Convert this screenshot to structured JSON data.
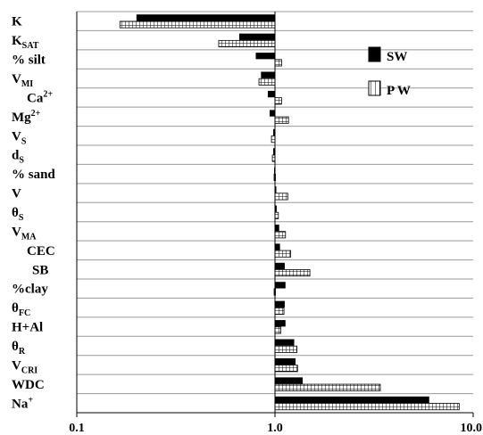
{
  "chart_data": {
    "type": "bar",
    "orientation": "horizontal",
    "x_scale": "log",
    "xlim": [
      0.1,
      10.0
    ],
    "x_ticks": [
      "0.1",
      "1.0",
      "10.0"
    ],
    "x_tick_values": [
      0.1,
      1.0,
      10.0
    ],
    "reference_value": 1.0,
    "grid": "horizontal row separators",
    "legend_position": "right",
    "categories": [
      {
        "main": "K",
        "sub": "",
        "sup": ""
      },
      {
        "main": "K",
        "sub": "SAT",
        "sup": ""
      },
      {
        "main": "% silt",
        "sub": "",
        "sup": ""
      },
      {
        "main": "V",
        "sub": "MI",
        "sup": ""
      },
      {
        "main": "Ca",
        "sub": "",
        "sup": "2+"
      },
      {
        "main": "Mg",
        "sub": "",
        "sup": "2+"
      },
      {
        "main": "V",
        "sub": "S",
        "sup": ""
      },
      {
        "main": "d",
        "sub": "S",
        "sup": ""
      },
      {
        "main": "% sand",
        "sub": "",
        "sup": ""
      },
      {
        "main": "V",
        "sub": "",
        "sup": ""
      },
      {
        "main": "θ",
        "sub": "S",
        "sup": ""
      },
      {
        "main": "V",
        "sub": "MA",
        "sup": ""
      },
      {
        "main": "CEC",
        "sub": "",
        "sup": ""
      },
      {
        "main": "SB",
        "sub": "",
        "sup": ""
      },
      {
        "main": "%clay",
        "sub": "",
        "sup": ""
      },
      {
        "main": "θ",
        "sub": "FC",
        "sup": ""
      },
      {
        "main": "H+Al",
        "sub": "",
        "sup": ""
      },
      {
        "main": "θ",
        "sub": "R",
        "sup": ""
      },
      {
        "main": "V",
        "sub": "CRI",
        "sup": ""
      },
      {
        "main": "WDC",
        "sub": "",
        "sup": ""
      },
      {
        "main": "Na",
        "sub": "",
        "sup": "+"
      }
    ],
    "series": [
      {
        "name": "SW",
        "style": "solid",
        "color": "#000000",
        "values": [
          0.2,
          0.66,
          0.8,
          0.85,
          0.92,
          0.94,
          0.98,
          0.98,
          0.99,
          1.0,
          1.02,
          1.05,
          1.06,
          1.12,
          1.13,
          1.12,
          1.13,
          1.25,
          1.27,
          1.38,
          6.0
        ]
      },
      {
        "name": "PW",
        "style": "grid",
        "color": "#000000",
        "values": [
          0.165,
          0.52,
          1.08,
          0.83,
          1.08,
          1.17,
          0.96,
          0.97,
          0.99,
          1.16,
          1.04,
          1.13,
          1.2,
          1.5,
          0.99,
          1.11,
          1.07,
          1.29,
          1.3,
          3.4,
          8.5
        ]
      }
    ]
  }
}
